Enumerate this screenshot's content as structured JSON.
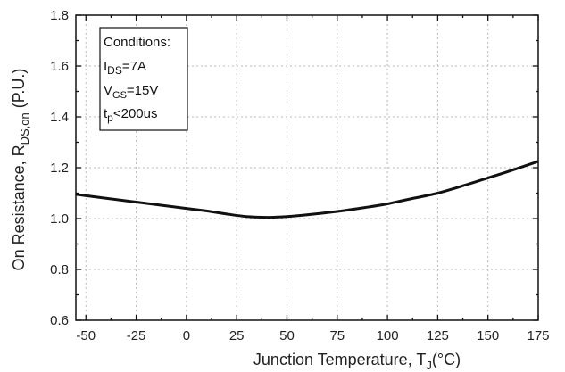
{
  "chart_data": {
    "type": "line",
    "title": "",
    "xlabel": {
      "main": "Junction Temperature, T",
      "sub": "J",
      "unit": "(°C)"
    },
    "ylabel": {
      "main": "On Resistance, R",
      "sub": "DS,on",
      "unit": " (P.U.)"
    },
    "xlim": [
      -55,
      175
    ],
    "ylim": [
      0.6,
      1.8
    ],
    "x_ticks": [
      -50,
      -25,
      0,
      25,
      50,
      75,
      100,
      125,
      150,
      175
    ],
    "y_ticks": [
      "0.6",
      "0.8",
      "1.0",
      "1.2",
      "1.4",
      "1.6",
      "1.8"
    ],
    "grid": true,
    "series": [
      {
        "x": [
          -55,
          -40,
          -25,
          -10,
          0,
          10,
          20,
          30,
          40,
          50,
          60,
          75,
          90,
          100,
          110,
          125,
          140,
          150,
          160,
          175
        ],
        "y": [
          1.095,
          1.08,
          1.065,
          1.05,
          1.04,
          1.03,
          1.018,
          1.008,
          1.005,
          1.008,
          1.015,
          1.028,
          1.045,
          1.058,
          1.075,
          1.1,
          1.135,
          1.16,
          1.185,
          1.225
        ]
      }
    ],
    "annotation": {
      "lines": [
        {
          "main": "Conditions:",
          "sub": "",
          "rest": ""
        },
        {
          "main": "I",
          "sub": "DS",
          "rest": "=7A"
        },
        {
          "main": "V",
          "sub": "GS",
          "rest": "=15V"
        },
        {
          "main": "t",
          "sub": "p",
          "rest": "<200us"
        }
      ]
    },
    "colors": {
      "line": "#111111",
      "grid": "#b8b8b8",
      "axis": "#111111"
    }
  }
}
